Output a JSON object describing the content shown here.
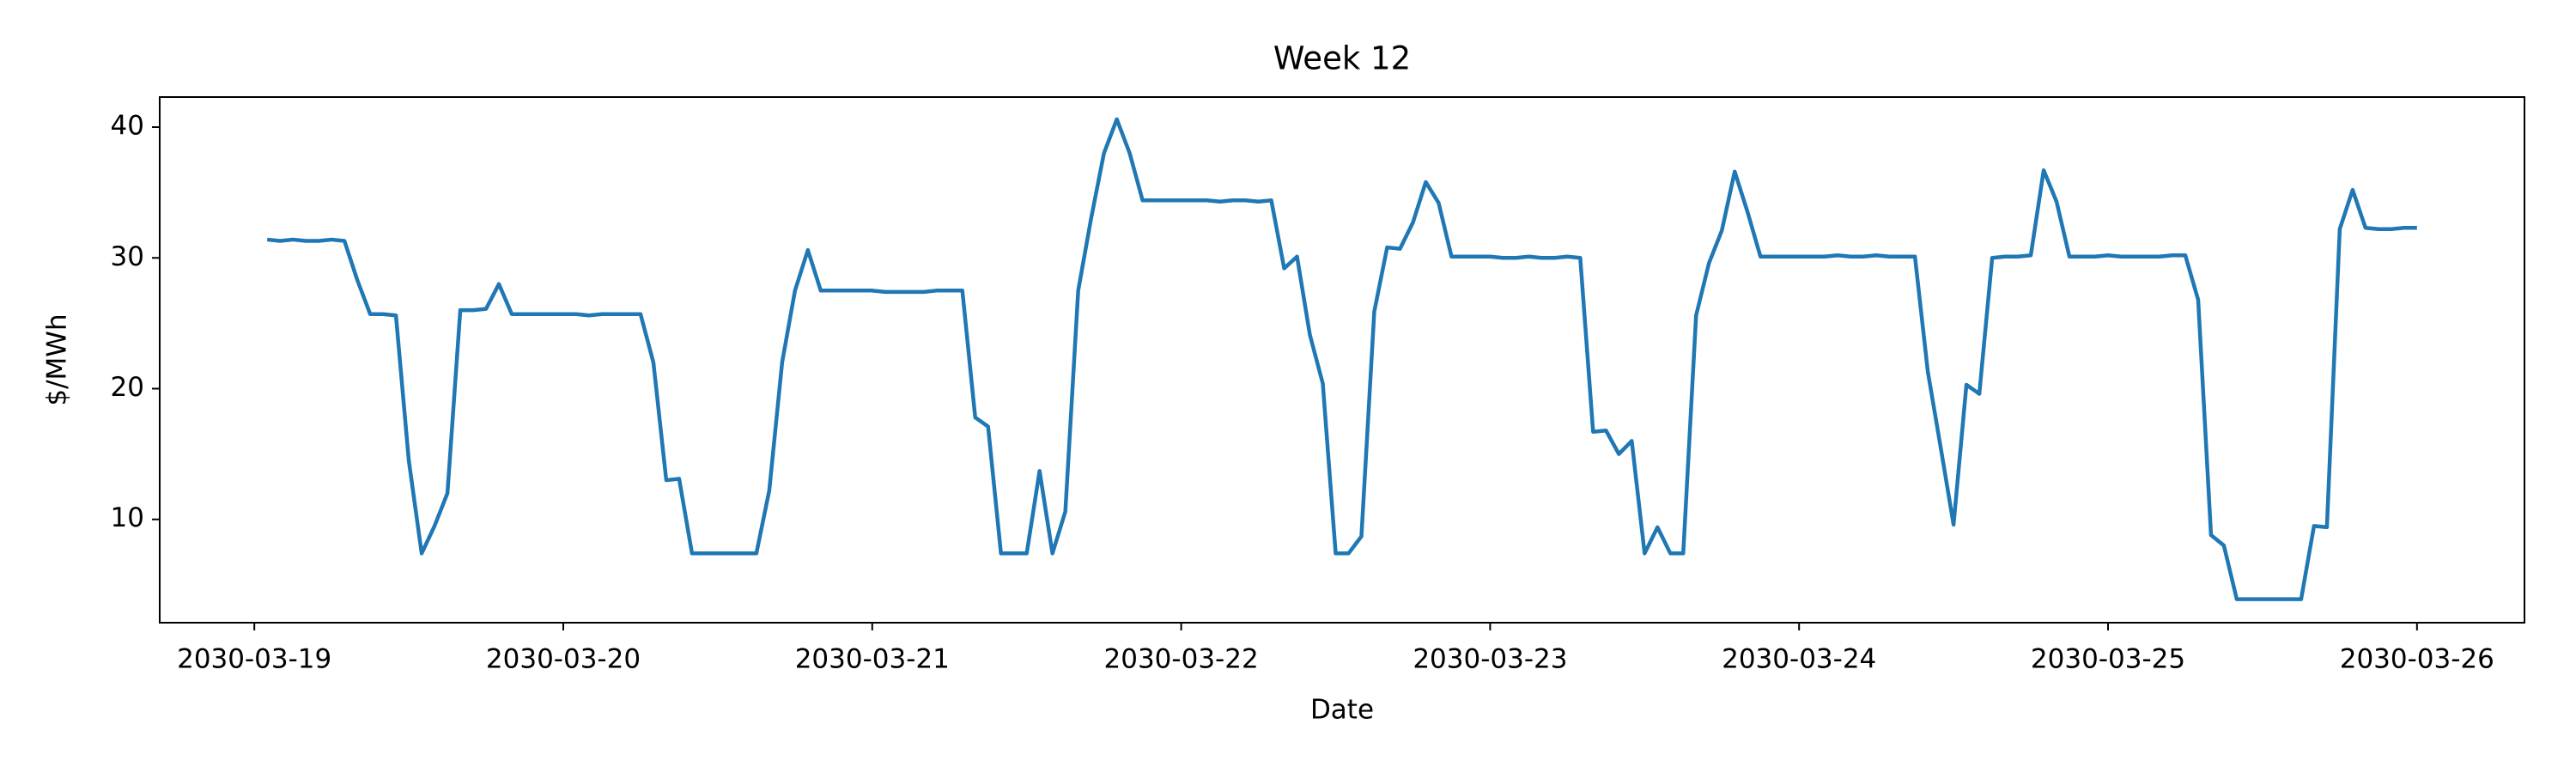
{
  "chart_data": {
    "type": "line",
    "title": "Week 12",
    "xlabel": "Date",
    "ylabel": "$/MWh",
    "color": "#1f77b4",
    "x": [
      "2030-03-19 01:00",
      "2030-03-19 02:00",
      "2030-03-19 03:00",
      "2030-03-19 04:00",
      "2030-03-19 05:00",
      "2030-03-19 06:00",
      "2030-03-19 07:00",
      "2030-03-19 08:00",
      "2030-03-19 09:00",
      "2030-03-19 10:00",
      "2030-03-19 11:00",
      "2030-03-19 12:00",
      "2030-03-19 13:00",
      "2030-03-19 14:00",
      "2030-03-19 15:00",
      "2030-03-19 16:00",
      "2030-03-19 17:00",
      "2030-03-19 18:00",
      "2030-03-19 19:00",
      "2030-03-19 20:00",
      "2030-03-19 21:00",
      "2030-03-19 22:00",
      "2030-03-19 23:00",
      "2030-03-20 00:00",
      "2030-03-20 01:00",
      "2030-03-20 02:00",
      "2030-03-20 03:00",
      "2030-03-20 04:00",
      "2030-03-20 05:00",
      "2030-03-20 06:00",
      "2030-03-20 07:00",
      "2030-03-20 08:00",
      "2030-03-20 09:00",
      "2030-03-20 10:00",
      "2030-03-20 11:00",
      "2030-03-20 12:00",
      "2030-03-20 13:00",
      "2030-03-20 14:00",
      "2030-03-20 15:00",
      "2030-03-20 16:00",
      "2030-03-20 17:00",
      "2030-03-20 18:00",
      "2030-03-20 19:00",
      "2030-03-20 20:00",
      "2030-03-20 21:00",
      "2030-03-20 22:00",
      "2030-03-20 23:00",
      "2030-03-21 00:00",
      "2030-03-21 01:00",
      "2030-03-21 02:00",
      "2030-03-21 03:00",
      "2030-03-21 04:00",
      "2030-03-21 05:00",
      "2030-03-21 06:00",
      "2030-03-21 07:00",
      "2030-03-21 08:00",
      "2030-03-21 09:00",
      "2030-03-21 10:00",
      "2030-03-21 11:00",
      "2030-03-21 12:00",
      "2030-03-21 13:00",
      "2030-03-21 14:00",
      "2030-03-21 15:00",
      "2030-03-21 16:00",
      "2030-03-21 17:00",
      "2030-03-21 18:00",
      "2030-03-21 19:00",
      "2030-03-21 20:00",
      "2030-03-21 21:00",
      "2030-03-21 22:00",
      "2030-03-21 23:00",
      "2030-03-22 00:00",
      "2030-03-22 01:00",
      "2030-03-22 02:00",
      "2030-03-22 03:00",
      "2030-03-22 04:00",
      "2030-03-22 05:00",
      "2030-03-22 06:00",
      "2030-03-22 07:00",
      "2030-03-22 08:00",
      "2030-03-22 09:00",
      "2030-03-22 10:00",
      "2030-03-22 11:00",
      "2030-03-22 12:00",
      "2030-03-22 13:00",
      "2030-03-22 14:00",
      "2030-03-22 15:00",
      "2030-03-22 16:00",
      "2030-03-22 17:00",
      "2030-03-22 18:00",
      "2030-03-22 19:00",
      "2030-03-22 20:00",
      "2030-03-22 21:00",
      "2030-03-22 22:00",
      "2030-03-22 23:00",
      "2030-03-23 00:00",
      "2030-03-23 01:00",
      "2030-03-23 02:00",
      "2030-03-23 03:00",
      "2030-03-23 04:00",
      "2030-03-23 05:00",
      "2030-03-23 06:00",
      "2030-03-23 07:00",
      "2030-03-23 08:00",
      "2030-03-23 09:00",
      "2030-03-23 10:00",
      "2030-03-23 11:00",
      "2030-03-23 12:00",
      "2030-03-23 13:00",
      "2030-03-23 14:00",
      "2030-03-23 15:00",
      "2030-03-23 16:00",
      "2030-03-23 17:00",
      "2030-03-23 18:00",
      "2030-03-23 19:00",
      "2030-03-23 20:00",
      "2030-03-23 21:00",
      "2030-03-23 22:00",
      "2030-03-23 23:00",
      "2030-03-24 00:00",
      "2030-03-24 01:00",
      "2030-03-24 02:00",
      "2030-03-24 03:00",
      "2030-03-24 04:00",
      "2030-03-24 05:00",
      "2030-03-24 06:00",
      "2030-03-24 07:00",
      "2030-03-24 08:00",
      "2030-03-24 09:00",
      "2030-03-24 10:00",
      "2030-03-24 11:00",
      "2030-03-24 12:00",
      "2030-03-24 13:00",
      "2030-03-24 14:00",
      "2030-03-24 15:00",
      "2030-03-24 16:00",
      "2030-03-24 17:00",
      "2030-03-24 18:00",
      "2030-03-24 19:00",
      "2030-03-24 20:00",
      "2030-03-24 21:00",
      "2030-03-24 22:00",
      "2030-03-24 23:00",
      "2030-03-25 00:00",
      "2030-03-25 01:00",
      "2030-03-25 02:00",
      "2030-03-25 03:00",
      "2030-03-25 04:00",
      "2030-03-25 05:00",
      "2030-03-25 06:00",
      "2030-03-25 07:00",
      "2030-03-25 08:00",
      "2030-03-25 09:00",
      "2030-03-25 10:00",
      "2030-03-25 11:00",
      "2030-03-25 12:00",
      "2030-03-25 13:00",
      "2030-03-25 14:00",
      "2030-03-25 15:00",
      "2030-03-25 16:00",
      "2030-03-25 17:00",
      "2030-03-25 18:00",
      "2030-03-25 19:00",
      "2030-03-25 20:00",
      "2030-03-25 21:00",
      "2030-03-25 22:00",
      "2030-03-25 23:00",
      "2030-03-26 00:00"
    ],
    "values": [
      31.4,
      31.3,
      31.4,
      31.3,
      31.3,
      31.4,
      31.3,
      28.3,
      25.7,
      25.7,
      25.6,
      14.5,
      7.4,
      9.5,
      12.0,
      26.0,
      26.0,
      26.1,
      28.0,
      25.7,
      25.7,
      25.7,
      25.7,
      25.7,
      25.7,
      25.6,
      25.7,
      25.7,
      25.7,
      25.7,
      22.0,
      13.0,
      13.1,
      7.4,
      7.4,
      7.4,
      7.4,
      7.4,
      7.4,
      12.2,
      22.0,
      27.5,
      30.6,
      27.5,
      27.5,
      27.5,
      27.5,
      27.5,
      27.4,
      27.4,
      27.4,
      27.4,
      27.5,
      27.5,
      27.5,
      17.8,
      17.1,
      7.4,
      7.4,
      7.4,
      13.7,
      7.4,
      10.6,
      27.5,
      33.0,
      38.0,
      40.6,
      38.0,
      34.4,
      34.4,
      34.4,
      34.4,
      34.4,
      34.4,
      34.3,
      34.4,
      34.4,
      34.3,
      34.4,
      29.2,
      30.1,
      24.1,
      20.4,
      7.4,
      7.4,
      8.7,
      25.9,
      30.8,
      30.7,
      32.7,
      35.8,
      34.2,
      30.1,
      30.1,
      30.1,
      30.1,
      30.0,
      30.0,
      30.1,
      30.0,
      30.0,
      30.1,
      30.0,
      16.7,
      16.8,
      15.0,
      16.0,
      7.4,
      9.4,
      7.4,
      7.4,
      25.6,
      29.6,
      32.1,
      36.6,
      33.5,
      30.1,
      30.1,
      30.1,
      30.1,
      30.1,
      30.1,
      30.2,
      30.1,
      30.1,
      30.2,
      30.1,
      30.1,
      30.1,
      21.3,
      15.5,
      9.6,
      20.3,
      19.6,
      30.0,
      30.1,
      30.1,
      30.2,
      36.7,
      34.3,
      30.1,
      30.1,
      30.1,
      30.2,
      30.1,
      30.1,
      30.1,
      30.1,
      30.2,
      30.2,
      26.8,
      8.8,
      8.0,
      3.9,
      3.9,
      3.9,
      3.9,
      3.9,
      3.9,
      9.5,
      9.4,
      32.2,
      35.2,
      32.3,
      32.2,
      32.2,
      32.3,
      32.3
    ],
    "xlim": [
      "2030-03-18 16:39",
      "2030-03-26 08:21"
    ],
    "xticks": [
      "2030-03-19",
      "2030-03-20",
      "2030-03-21",
      "2030-03-22",
      "2030-03-23",
      "2030-03-24",
      "2030-03-25",
      "2030-03-26"
    ],
    "ylim": [
      2.1,
      42.3
    ],
    "yticks": [
      10,
      20,
      30,
      40
    ],
    "grid": false
  }
}
